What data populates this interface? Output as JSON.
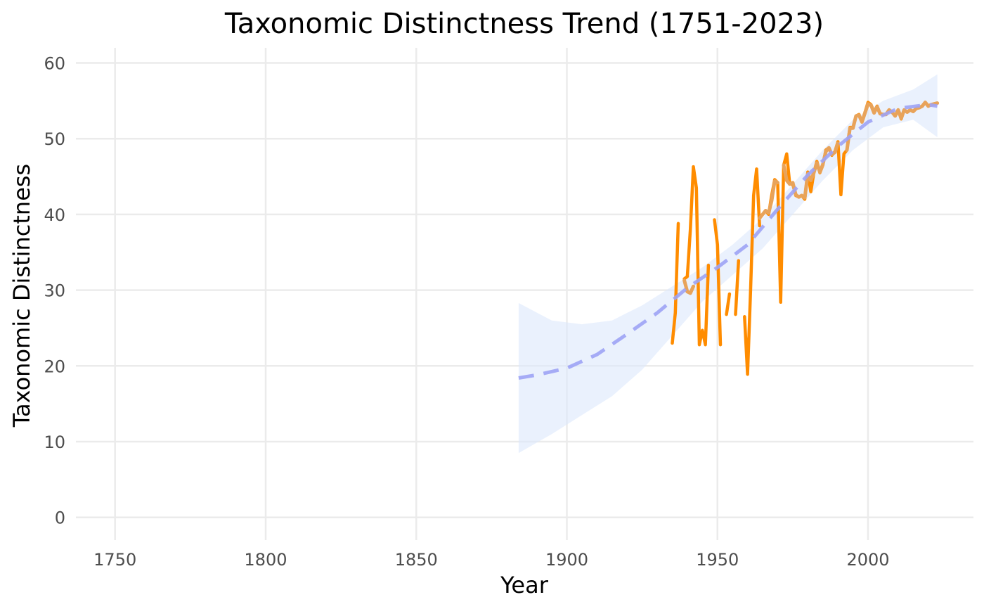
{
  "chart_data": {
    "type": "line",
    "title": "Taxonomic Distinctness Trend (1751-2023)",
    "xlabel": "Year",
    "ylabel": "Taxonomic Distinctness",
    "xlim": [
      1737,
      2035
    ],
    "ylim": [
      -3,
      62
    ],
    "x_ticks": [
      1750,
      1800,
      1850,
      1900,
      1950,
      2000
    ],
    "y_ticks": [
      0,
      10,
      20,
      30,
      40,
      50,
      60
    ],
    "grid": true,
    "legend": "none",
    "colors": {
      "observed": "#ff8c00",
      "smoothed_observed": "#e8a35a",
      "trend": "#9da3f5",
      "ribbon": "#dce8fc"
    },
    "series": [
      {
        "kind": "observed",
        "style": "solid",
        "segments": [
          [
            [
              1935,
              23
            ],
            [
              1936,
              27
            ],
            [
              1937,
              38.8
            ]
          ],
          [
            [
              1939,
              31.5
            ],
            [
              1940,
              31.8
            ],
            [
              1941,
              38
            ],
            [
              1942,
              46.3
            ],
            [
              1943,
              43.5
            ],
            [
              1944,
              22.8
            ],
            [
              1945,
              24.7
            ],
            [
              1946,
              22.8
            ],
            [
              1947,
              33.3
            ]
          ],
          [
            [
              1949,
              39.3
            ],
            [
              1950,
              36
            ],
            [
              1951,
              22.8
            ]
          ],
          [
            [
              1953,
              26.8
            ],
            [
              1954,
              29.5
            ]
          ],
          [
            [
              1956,
              26.8
            ],
            [
              1957,
              33.9
            ]
          ],
          [
            [
              1959,
              26.5
            ],
            [
              1960,
              18.9
            ],
            [
              1961,
              30
            ],
            [
              1962,
              42.5
            ],
            [
              1963,
              46
            ],
            [
              1964,
              38.5
            ]
          ],
          [
            [
              1966,
              40.5
            ],
            [
              1967,
              40
            ],
            [
              1968,
              42.5
            ],
            [
              1969,
              44.6
            ],
            [
              1970,
              44.2
            ],
            [
              1971,
              28.4
            ],
            [
              1972,
              46.5
            ],
            [
              1973,
              48
            ],
            [
              1974,
              44
            ],
            [
              1975,
              44
            ],
            [
              1976,
              42.5
            ],
            [
              1977,
              42.3
            ],
            [
              1978,
              42.5
            ],
            [
              1979,
              42
            ],
            [
              1980,
              45.6
            ],
            [
              1981,
              43
            ],
            [
              1982,
              45.5
            ],
            [
              1983,
              47
            ],
            [
              1984,
              45.5
            ],
            [
              1985,
              46.5
            ],
            [
              1986,
              48.5
            ],
            [
              1987,
              48.8
            ],
            [
              1988,
              47.8
            ],
            [
              1989,
              48.3
            ],
            [
              1990,
              49.6
            ],
            [
              1991,
              42.6
            ],
            [
              1992,
              48
            ],
            [
              1993,
              48.5
            ],
            [
              1994,
              51.5
            ],
            [
              1995,
              51.5
            ],
            [
              1996,
              53
            ],
            [
              1997,
              53.2
            ],
            [
              1998,
              52.2
            ],
            [
              1999,
              53.5
            ],
            [
              2000,
              54.8
            ],
            [
              2001,
              54.5
            ],
            [
              2002,
              53.5
            ],
            [
              2003,
              54.3
            ],
            [
              2004,
              53.3
            ],
            [
              2005,
              53.2
            ],
            [
              2006,
              53.2
            ],
            [
              2007,
              53.8
            ],
            [
              2008,
              53.5
            ],
            [
              2009,
              53
            ],
            [
              2010,
              53.8
            ],
            [
              2011,
              52.6
            ],
            [
              2012,
              53.8
            ],
            [
              2013,
              53.5
            ],
            [
              2014,
              53.8
            ],
            [
              2015,
              53.6
            ],
            [
              2016,
              54
            ],
            [
              2017,
              54.1
            ],
            [
              2018,
              54.3
            ],
            [
              2019,
              54.8
            ],
            [
              2020,
              54.3
            ],
            [
              2021,
              54.5
            ],
            [
              2022,
              54.6
            ],
            [
              2023,
              54.7
            ]
          ]
        ]
      },
      {
        "kind": "smoothed_observed",
        "style": "solid",
        "segments": [
          [
            [
              1939,
              31.3
            ],
            [
              1940,
              29.8
            ],
            [
              1941,
              29.6
            ],
            [
              1942,
              30.5
            ]
          ],
          [
            [
              1964,
              39.5
            ],
            [
              1966,
              40.5
            ],
            [
              1967,
              40.2
            ],
            [
              1968,
              41.8
            ],
            [
              1969,
              44.4
            ],
            [
              1970,
              44.2
            ]
          ],
          [
            [
              1972,
              46.5
            ],
            [
              1973,
              44.5
            ],
            [
              1974,
              44
            ],
            [
              1975,
              44.2
            ],
            [
              1976,
              42.6
            ],
            [
              1977,
              42.3
            ],
            [
              1978,
              42.5
            ],
            [
              1979,
              42.2
            ],
            [
              1980,
              45.4
            ],
            [
              1981,
              44.5
            ],
            [
              1982,
              45.5
            ],
            [
              1983,
              46.8
            ],
            [
              1984,
              45.6
            ],
            [
              1985,
              46.6
            ],
            [
              1986,
              48.3
            ],
            [
              1987,
              48.8
            ],
            [
              1988,
              47.9
            ],
            [
              1989,
              48.2
            ],
            [
              1990,
              49.4
            ]
          ],
          [
            [
              1993,
              48.5
            ],
            [
              1994,
              51.4
            ],
            [
              1995,
              51.4
            ],
            [
              1996,
              53
            ],
            [
              1997,
              53.1
            ],
            [
              1998,
              52.2
            ],
            [
              1999,
              53.4
            ],
            [
              2000,
              54.6
            ],
            [
              2001,
              54.4
            ],
            [
              2002,
              53.4
            ],
            [
              2003,
              54.2
            ],
            [
              2004,
              53.3
            ],
            [
              2005,
              53.2
            ],
            [
              2006,
              53.2
            ],
            [
              2007,
              53.8
            ],
            [
              2008,
              53.5
            ],
            [
              2009,
              53
            ],
            [
              2010,
              53.8
            ],
            [
              2011,
              52.7
            ],
            [
              2012,
              53.8
            ],
            [
              2013,
              53.5
            ],
            [
              2014,
              53.8
            ],
            [
              2015,
              53.6
            ],
            [
              2016,
              54
            ],
            [
              2017,
              54.1
            ],
            [
              2018,
              54.3
            ],
            [
              2019,
              54.8
            ],
            [
              2020,
              54.3
            ],
            [
              2021,
              54.5
            ],
            [
              2022,
              54.6
            ],
            [
              2023,
              54.7
            ]
          ]
        ]
      },
      {
        "kind": "trend",
        "style": "dashed",
        "points": [
          [
            1884,
            18.4
          ],
          [
            1890,
            18.8
          ],
          [
            1900,
            19.7
          ],
          [
            1910,
            21.5
          ],
          [
            1920,
            24.2
          ],
          [
            1930,
            27
          ],
          [
            1940,
            30.3
          ],
          [
            1950,
            33
          ],
          [
            1960,
            36
          ],
          [
            1970,
            40.7
          ],
          [
            1980,
            45.2
          ],
          [
            1990,
            49
          ],
          [
            2000,
            52.2
          ],
          [
            2010,
            54
          ],
          [
            2020,
            54.5
          ],
          [
            2023,
            54.3
          ]
        ]
      },
      {
        "kind": "ribbon",
        "upper": [
          [
            1884,
            28.3
          ],
          [
            1895,
            26
          ],
          [
            1905,
            25.5
          ],
          [
            1915,
            26
          ],
          [
            1925,
            28
          ],
          [
            1935,
            30.5
          ],
          [
            1945,
            33
          ],
          [
            1955,
            36
          ],
          [
            1965,
            39.5
          ],
          [
            1975,
            44
          ],
          [
            1985,
            48.5
          ],
          [
            1995,
            52.5
          ],
          [
            2005,
            55
          ],
          [
            2015,
            56.5
          ],
          [
            2023,
            58.5
          ]
        ],
        "lower": [
          [
            2023,
            50.2
          ],
          [
            2015,
            52.5
          ],
          [
            2005,
            51.5
          ],
          [
            1995,
            48.5
          ],
          [
            1985,
            44.5
          ],
          [
            1975,
            40
          ],
          [
            1965,
            35.5
          ],
          [
            1955,
            32
          ],
          [
            1945,
            28.5
          ],
          [
            1935,
            24
          ],
          [
            1925,
            19.5
          ],
          [
            1915,
            16
          ],
          [
            1905,
            13.5
          ],
          [
            1895,
            11
          ],
          [
            1884,
            8.5
          ]
        ]
      }
    ]
  }
}
